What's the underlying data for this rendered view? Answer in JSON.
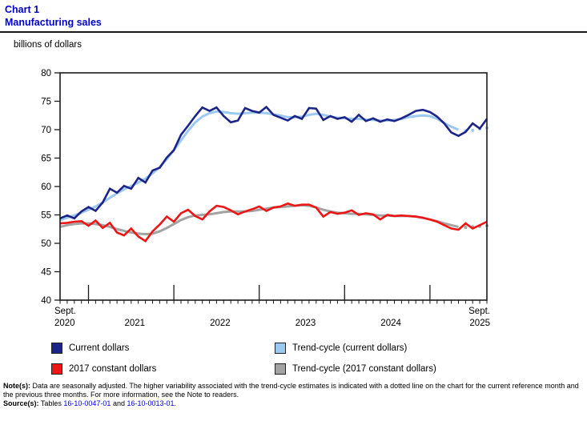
{
  "header": {
    "chart_number": "Chart 1",
    "title": "Manufacturing sales"
  },
  "chart_data": {
    "type": "line",
    "ylabel": "billions of dollars",
    "ylim": [
      40,
      80
    ],
    "ytick_step": 5,
    "grid": false,
    "n_points": 61,
    "x_range_note": "monthly from September 2020 to September 2025",
    "x_start_label": [
      "Sept.",
      "2020"
    ],
    "x_end_label": [
      "Sept.",
      "2025"
    ],
    "year_labels": [
      {
        "label": "2021",
        "jan_index": 4
      },
      {
        "label": "2022",
        "jan_index": 16
      },
      {
        "label": "2023",
        "jan_index": 28
      },
      {
        "label": "2024",
        "jan_index": 40
      }
    ],
    "extra_jan_ticks": [
      52
    ],
    "dotted_tail_points": 4,
    "series": [
      {
        "name": "Current dollars",
        "color": "#1c2487",
        "style": "raw",
        "values": [
          54.4,
          54.9,
          54.4,
          55.6,
          56.4,
          55.7,
          57.2,
          59.6,
          58.9,
          60.1,
          59.6,
          61.5,
          60.7,
          62.8,
          63.3,
          65.1,
          66.4,
          69.1,
          70.7,
          72.4,
          73.9,
          73.3,
          73.9,
          72.4,
          71.3,
          71.6,
          73.8,
          73.3,
          73.0,
          74.0,
          72.6,
          72.1,
          71.6,
          72.4,
          71.9,
          73.8,
          73.7,
          71.7,
          72.4,
          71.9,
          72.2,
          71.4,
          72.6,
          71.5,
          72.0,
          71.4,
          71.8,
          71.5,
          72.0,
          72.6,
          73.3,
          73.5,
          73.1,
          72.3,
          71.1,
          69.5,
          68.9,
          69.6,
          71.1,
          70.2,
          71.9
        ]
      },
      {
        "name": "Trend-cycle (current dollars)",
        "color": "#9cc9f0",
        "style": "trend",
        "values": [
          54.1,
          54.5,
          54.9,
          55.4,
          55.9,
          56.5,
          57.2,
          58.0,
          58.8,
          59.5,
          60.1,
          60.7,
          61.4,
          62.3,
          63.4,
          64.8,
          66.4,
          68.1,
          69.8,
          71.3,
          72.3,
          72.9,
          73.2,
          73.1,
          72.9,
          72.8,
          72.9,
          73.0,
          73.0,
          72.9,
          72.7,
          72.5,
          72.2,
          72.2,
          72.3,
          72.6,
          72.8,
          72.6,
          72.3,
          72.1,
          72.0,
          71.9,
          71.9,
          71.8,
          71.7,
          71.6,
          71.6,
          71.7,
          71.9,
          72.2,
          72.4,
          72.5,
          72.4,
          71.9,
          71.2,
          70.5,
          70.0,
          69.8,
          69.9,
          70.1,
          70.3
        ]
      },
      {
        "name": "2017 constant dollars",
        "color": "#ed1515",
        "style": "raw",
        "values": [
          53.5,
          53.6,
          53.8,
          53.9,
          53.1,
          54.0,
          52.7,
          53.6,
          51.9,
          51.4,
          52.6,
          51.2,
          50.4,
          52.1,
          53.3,
          54.7,
          53.8,
          55.3,
          55.9,
          54.8,
          54.2,
          55.6,
          56.6,
          56.4,
          55.8,
          55.1,
          55.6,
          56.0,
          56.5,
          55.7,
          56.3,
          56.5,
          57.0,
          56.6,
          56.8,
          56.8,
          56.3,
          54.7,
          55.5,
          55.2,
          55.4,
          55.8,
          55.0,
          55.3,
          55.1,
          54.2,
          55.0,
          54.8,
          54.9,
          54.8,
          54.7,
          54.5,
          54.2,
          53.8,
          53.2,
          52.6,
          52.4,
          53.5,
          52.6,
          53.2,
          53.8
        ]
      },
      {
        "name": "Trend-cycle (2017 constant dollars)",
        "color": "#a3a3a3",
        "style": "trend",
        "values": [
          52.9,
          53.2,
          53.4,
          53.5,
          53.5,
          53.4,
          53.2,
          52.9,
          52.5,
          52.2,
          51.9,
          51.7,
          51.6,
          51.7,
          52.1,
          52.7,
          53.4,
          54.1,
          54.6,
          54.9,
          55.0,
          55.1,
          55.3,
          55.5,
          55.6,
          55.6,
          55.6,
          55.7,
          55.9,
          56.1,
          56.3,
          56.4,
          56.5,
          56.6,
          56.7,
          56.6,
          56.3,
          55.9,
          55.6,
          55.4,
          55.3,
          55.2,
          55.2,
          55.1,
          55.0,
          54.9,
          54.9,
          54.8,
          54.8,
          54.8,
          54.7,
          54.5,
          54.2,
          53.9,
          53.5,
          53.2,
          52.9,
          52.8,
          52.9,
          53.0,
          53.1
        ]
      }
    ]
  },
  "legend": {
    "items": [
      {
        "label": "Current dollars",
        "color": "#1c2487"
      },
      {
        "label": "Trend-cycle (current dollars)",
        "color": "#9cc9f0"
      },
      {
        "label": "2017 constant dollars",
        "color": "#ed1515"
      },
      {
        "label": "Trend-cycle (2017 constant dollars)",
        "color": "#a3a3a3"
      }
    ]
  },
  "notes": {
    "label": "Note(s):",
    "text": "Data are seasonally adjusted. The higher variability associated with the trend-cycle estimates is indicated with a dotted line on the chart for the current reference month and the previous three months. For more information, see the Note to readers."
  },
  "sources": {
    "label": "Source(s):",
    "prefix": "Tables",
    "link1": "16-10-0047-01",
    "and_word": "and",
    "link2": "16-10-0013-01",
    "period": "."
  }
}
